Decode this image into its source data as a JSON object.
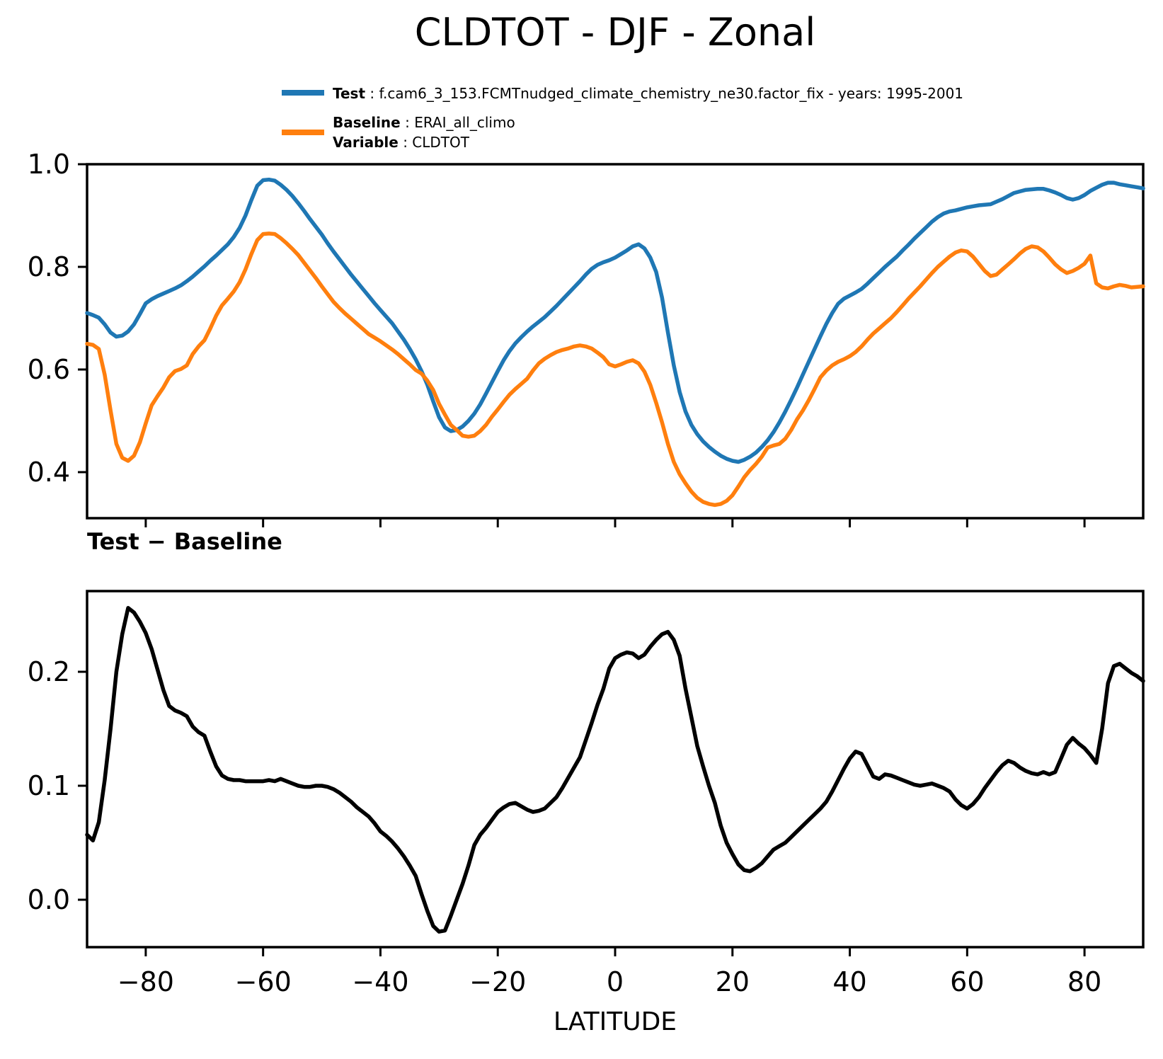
{
  "title": "CLDTOT - DJF - Zonal",
  "legend": {
    "test_label": "Test",
    "test_sep": " : ",
    "test_text": "f.cam6_3_153.FCMTnudged_climate_chemistry_ne30.factor_fix - years: 1995-2001",
    "baseline_label": "Baseline",
    "baseline_sep": " : ",
    "baseline_text": "ERAI_all_climo",
    "variable_label": "Variable",
    "variable_sep": " : ",
    "variable_text": "CLDTOT"
  },
  "diff_title": "Test − Baseline",
  "xlabel": "LATITUDE",
  "colors": {
    "test": "#1f77b4",
    "baseline": "#ff7f0e",
    "diff": "#000000"
  },
  "chart_data": [
    {
      "type": "line",
      "title": "CLDTOT - DJF - Zonal",
      "xlabel": "",
      "ylabel": "",
      "xlim": [
        -90,
        90
      ],
      "ylim": [
        0.3103,
        1.0
      ],
      "grid": false,
      "legend_position": "top-left-above",
      "yticks": {
        "values": [
          1.0,
          0.8,
          0.6,
          0.4
        ],
        "labels": [
          "1.0",
          "0.8",
          "0.6",
          "0.4"
        ]
      },
      "xticks": {
        "values": [
          -80,
          -60,
          -40,
          -20,
          0,
          20,
          40,
          60,
          80
        ],
        "labels": [
          "",
          "",
          "",
          "",
          "",
          "",
          "",
          "",
          ""
        ]
      },
      "x": [
        -90,
        -89,
        -88,
        -87,
        -86,
        -85,
        -84,
        -83,
        -82,
        -81,
        -80,
        -79,
        -78,
        -77,
        -76,
        -75,
        -74,
        -73,
        -72,
        -71,
        -70,
        -69,
        -68,
        -67,
        -66,
        -65,
        -64,
        -63,
        -62,
        -61,
        -60,
        -59,
        -58,
        -57,
        -56,
        -55,
        -54,
        -53,
        -52,
        -51,
        -50,
        -49,
        -48,
        -47,
        -46,
        -45,
        -44,
        -43,
        -42,
        -41,
        -40,
        -39,
        -38,
        -37,
        -36,
        -35,
        -34,
        -33,
        -32,
        -31,
        -30,
        -29,
        -28,
        -27,
        -26,
        -25,
        -24,
        -23,
        -22,
        -21,
        -20,
        -19,
        -18,
        -17,
        -16,
        -15,
        -14,
        -13,
        -12,
        -11,
        -10,
        -9,
        -8,
        -7,
        -6,
        -5,
        -4,
        -3,
        -2,
        -1,
        0,
        1,
        2,
        3,
        4,
        5,
        6,
        7,
        8,
        9,
        10,
        11,
        12,
        13,
        14,
        15,
        16,
        17,
        18,
        19,
        20,
        21,
        22,
        23,
        24,
        25,
        26,
        27,
        28,
        29,
        30,
        31,
        32,
        33,
        34,
        35,
        36,
        37,
        38,
        39,
        40,
        41,
        42,
        43,
        44,
        45,
        46,
        47,
        48,
        49,
        50,
        51,
        52,
        53,
        54,
        55,
        56,
        57,
        58,
        59,
        60,
        61,
        62,
        63,
        64,
        65,
        66,
        67,
        68,
        69,
        70,
        71,
        72,
        73,
        74,
        75,
        76,
        77,
        78,
        79,
        80,
        81,
        82,
        83,
        84,
        85,
        86,
        87,
        88,
        89,
        90
      ],
      "series": [
        {
          "name": "Test",
          "color": "#1f77b4",
          "values": [
            0.71,
            0.706,
            0.701,
            0.688,
            0.672,
            0.664,
            0.666,
            0.674,
            0.688,
            0.708,
            0.729,
            0.737,
            0.743,
            0.748,
            0.753,
            0.758,
            0.764,
            0.772,
            0.781,
            0.791,
            0.801,
            0.812,
            0.822,
            0.833,
            0.844,
            0.858,
            0.876,
            0.9,
            0.93,
            0.958,
            0.969,
            0.97,
            0.968,
            0.96,
            0.95,
            0.938,
            0.924,
            0.909,
            0.893,
            0.878,
            0.863,
            0.846,
            0.83,
            0.815,
            0.8,
            0.785,
            0.771,
            0.757,
            0.743,
            0.729,
            0.716,
            0.703,
            0.69,
            0.674,
            0.658,
            0.64,
            0.62,
            0.597,
            0.57,
            0.538,
            0.507,
            0.487,
            0.48,
            0.482,
            0.489,
            0.5,
            0.514,
            0.532,
            0.553,
            0.575,
            0.597,
            0.618,
            0.636,
            0.651,
            0.663,
            0.674,
            0.684,
            0.693,
            0.702,
            0.713,
            0.724,
            0.736,
            0.748,
            0.76,
            0.772,
            0.785,
            0.796,
            0.804,
            0.809,
            0.813,
            0.818,
            0.825,
            0.832,
            0.84,
            0.844,
            0.836,
            0.818,
            0.79,
            0.74,
            0.672,
            0.608,
            0.556,
            0.518,
            0.492,
            0.474,
            0.46,
            0.449,
            0.44,
            0.432,
            0.426,
            0.422,
            0.42,
            0.424,
            0.43,
            0.438,
            0.449,
            0.462,
            0.478,
            0.497,
            0.518,
            0.541,
            0.565,
            0.59,
            0.615,
            0.64,
            0.665,
            0.689,
            0.71,
            0.728,
            0.738,
            0.744,
            0.75,
            0.757,
            0.767,
            0.778,
            0.789,
            0.8,
            0.81,
            0.82,
            0.832,
            0.843,
            0.855,
            0.866,
            0.877,
            0.888,
            0.897,
            0.904,
            0.908,
            0.91,
            0.913,
            0.916,
            0.918,
            0.92,
            0.921,
            0.922,
            0.927,
            0.932,
            0.938,
            0.944,
            0.947,
            0.95,
            0.951,
            0.952,
            0.952,
            0.949,
            0.945,
            0.94,
            0.934,
            0.931,
            0.934,
            0.94,
            0.948,
            0.954,
            0.96,
            0.964,
            0.964,
            0.961,
            0.959,
            0.957,
            0.955,
            0.953
          ]
        },
        {
          "name": "Baseline",
          "color": "#ff7f0e",
          "values": [
            0.65,
            0.648,
            0.64,
            0.59,
            0.52,
            0.455,
            0.428,
            0.422,
            0.432,
            0.458,
            0.495,
            0.53,
            0.548,
            0.565,
            0.585,
            0.597,
            0.601,
            0.608,
            0.63,
            0.645,
            0.657,
            0.68,
            0.705,
            0.725,
            0.738,
            0.752,
            0.77,
            0.795,
            0.825,
            0.852,
            0.864,
            0.865,
            0.864,
            0.856,
            0.846,
            0.835,
            0.823,
            0.808,
            0.793,
            0.778,
            0.762,
            0.747,
            0.732,
            0.72,
            0.709,
            0.699,
            0.689,
            0.679,
            0.669,
            0.662,
            0.655,
            0.647,
            0.639,
            0.63,
            0.62,
            0.61,
            0.599,
            0.592,
            0.578,
            0.56,
            0.533,
            0.512,
            0.492,
            0.482,
            0.471,
            0.469,
            0.471,
            0.48,
            0.492,
            0.508,
            0.522,
            0.537,
            0.551,
            0.562,
            0.572,
            0.582,
            0.598,
            0.612,
            0.621,
            0.628,
            0.634,
            0.638,
            0.641,
            0.645,
            0.647,
            0.645,
            0.641,
            0.633,
            0.624,
            0.61,
            0.606,
            0.61,
            0.615,
            0.618,
            0.612,
            0.596,
            0.57,
            0.535,
            0.497,
            0.455,
            0.42,
            0.396,
            0.378,
            0.362,
            0.35,
            0.342,
            0.338,
            0.336,
            0.338,
            0.344,
            0.355,
            0.372,
            0.39,
            0.404,
            0.416,
            0.43,
            0.448,
            0.452,
            0.455,
            0.465,
            0.482,
            0.503,
            0.52,
            0.54,
            0.562,
            0.585,
            0.598,
            0.608,
            0.615,
            0.62,
            0.626,
            0.634,
            0.645,
            0.658,
            0.67,
            0.68,
            0.69,
            0.7,
            0.712,
            0.725,
            0.738,
            0.75,
            0.762,
            0.775,
            0.788,
            0.8,
            0.81,
            0.82,
            0.828,
            0.832,
            0.83,
            0.82,
            0.806,
            0.792,
            0.782,
            0.785,
            0.795,
            0.805,
            0.815,
            0.826,
            0.835,
            0.84,
            0.838,
            0.83,
            0.818,
            0.805,
            0.795,
            0.788,
            0.792,
            0.798,
            0.806,
            0.822,
            0.768,
            0.76,
            0.758,
            0.762,
            0.765,
            0.763,
            0.76,
            0.761,
            0.762
          ]
        }
      ]
    },
    {
      "type": "line",
      "title": "Test − Baseline",
      "xlabel": "LATITUDE",
      "ylabel": "",
      "xlim": [
        -90,
        90
      ],
      "ylim": [
        -0.0416,
        0.2708
      ],
      "grid": false,
      "yticks": {
        "values": [
          0.2,
          0.1,
          0.0
        ],
        "labels": [
          "0.2",
          "0.1",
          "0.0"
        ]
      },
      "xticks": {
        "values": [
          -80,
          -60,
          -40,
          -20,
          0,
          20,
          40,
          60,
          80
        ],
        "labels": [
          "−80",
          "−60",
          "−40",
          "−20",
          "0",
          "20",
          "40",
          "60",
          "80"
        ]
      },
      "x": [
        -90,
        -89,
        -88,
        -87,
        -86,
        -85,
        -84,
        -83,
        -82,
        -81,
        -80,
        -79,
        -78,
        -77,
        -76,
        -75,
        -74,
        -73,
        -72,
        -71,
        -70,
        -69,
        -68,
        -67,
        -66,
        -65,
        -64,
        -63,
        -62,
        -61,
        -60,
        -59,
        -58,
        -57,
        -56,
        -55,
        -54,
        -53,
        -52,
        -51,
        -50,
        -49,
        -48,
        -47,
        -46,
        -45,
        -44,
        -43,
        -42,
        -41,
        -40,
        -39,
        -38,
        -37,
        -36,
        -35,
        -34,
        -33,
        -32,
        -31,
        -30,
        -29,
        -28,
        -27,
        -26,
        -25,
        -24,
        -23,
        -22,
        -21,
        -20,
        -19,
        -18,
        -17,
        -16,
        -15,
        -14,
        -13,
        -12,
        -11,
        -10,
        -9,
        -8,
        -7,
        -6,
        -5,
        -4,
        -3,
        -2,
        -1,
        0,
        1,
        2,
        3,
        4,
        5,
        6,
        7,
        8,
        9,
        10,
        11,
        12,
        13,
        14,
        15,
        16,
        17,
        18,
        19,
        20,
        21,
        22,
        23,
        24,
        25,
        26,
        27,
        28,
        29,
        30,
        31,
        32,
        33,
        34,
        35,
        36,
        37,
        38,
        39,
        40,
        41,
        42,
        43,
        44,
        45,
        46,
        47,
        48,
        49,
        50,
        51,
        52,
        53,
        54,
        55,
        56,
        57,
        58,
        59,
        60,
        61,
        62,
        63,
        64,
        65,
        66,
        67,
        68,
        69,
        70,
        71,
        72,
        73,
        74,
        75,
        76,
        77,
        78,
        79,
        80,
        81,
        82,
        83,
        84,
        85,
        86,
        87,
        88,
        89,
        90
      ],
      "series": [
        {
          "name": "Test − Baseline",
          "color": "#000000",
          "values": [
            0.057,
            0.052,
            0.068,
            0.105,
            0.15,
            0.2,
            0.233,
            0.256,
            0.252,
            0.244,
            0.234,
            0.22,
            0.202,
            0.184,
            0.17,
            0.166,
            0.164,
            0.161,
            0.152,
            0.147,
            0.144,
            0.13,
            0.117,
            0.109,
            0.106,
            0.105,
            0.105,
            0.104,
            0.104,
            0.104,
            0.104,
            0.105,
            0.104,
            0.106,
            0.104,
            0.102,
            0.1,
            0.099,
            0.099,
            0.1,
            0.1,
            0.099,
            0.097,
            0.094,
            0.09,
            0.086,
            0.081,
            0.077,
            0.073,
            0.067,
            0.06,
            0.056,
            0.051,
            0.045,
            0.038,
            0.03,
            0.021,
            0.005,
            -0.01,
            -0.023,
            -0.028,
            -0.027,
            -0.014,
            0.0,
            0.014,
            0.03,
            0.048,
            0.057,
            0.063,
            0.07,
            0.077,
            0.081,
            0.084,
            0.085,
            0.082,
            0.079,
            0.077,
            0.078,
            0.08,
            0.085,
            0.09,
            0.098,
            0.107,
            0.116,
            0.125,
            0.14,
            0.155,
            0.171,
            0.185,
            0.203,
            0.212,
            0.215,
            0.217,
            0.216,
            0.212,
            0.215,
            0.222,
            0.228,
            0.233,
            0.235,
            0.228,
            0.214,
            0.185,
            0.16,
            0.135,
            0.117,
            0.1,
            0.085,
            0.065,
            0.05,
            0.04,
            0.031,
            0.026,
            0.025,
            0.028,
            0.032,
            0.038,
            0.044,
            0.047,
            0.05,
            0.055,
            0.06,
            0.065,
            0.07,
            0.075,
            0.08,
            0.086,
            0.095,
            0.105,
            0.115,
            0.124,
            0.13,
            0.128,
            0.118,
            0.108,
            0.106,
            0.11,
            0.109,
            0.107,
            0.105,
            0.103,
            0.101,
            0.1,
            0.101,
            0.102,
            0.1,
            0.098,
            0.095,
            0.088,
            0.083,
            0.08,
            0.084,
            0.09,
            0.098,
            0.105,
            0.112,
            0.118,
            0.122,
            0.12,
            0.116,
            0.113,
            0.111,
            0.11,
            0.112,
            0.11,
            0.112,
            0.124,
            0.136,
            0.142,
            0.137,
            0.133,
            0.127,
            0.12,
            0.15,
            0.19,
            0.205,
            0.207,
            0.203,
            0.199,
            0.196,
            0.192
          ]
        }
      ]
    }
  ]
}
